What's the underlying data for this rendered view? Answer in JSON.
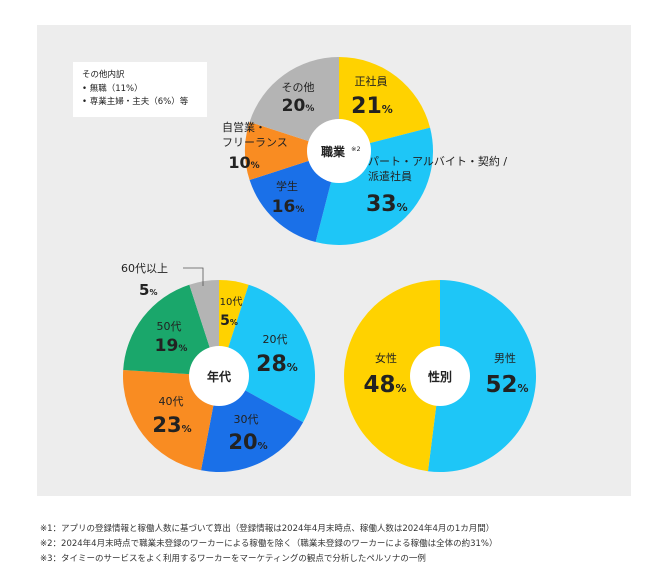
{
  "colors": {
    "yellow": "#ffd200",
    "lightblue": "#1ec6f7",
    "blue": "#1a70e8",
    "orange": "#f98c22",
    "gray": "#b4b4b4",
    "green": "#1aa76b",
    "background": "#ededed"
  },
  "note_box": {
    "title": "その他内訳",
    "items": [
      "• 無職（11%）",
      "• 専業主婦・主夫（6%）等"
    ]
  },
  "chart_data": [
    {
      "type": "pie",
      "variant": "donut",
      "center_label": "職業",
      "center_sup": "※2",
      "slices": [
        {
          "label": "正社員",
          "value": 21,
          "display": "21",
          "color": "yellow"
        },
        {
          "label": "パート・アルバイト・契約 / 派遣社員",
          "label_lines": [
            "パート・アルバイト・契約 /",
            "派遣社員"
          ],
          "value": 33,
          "display": "33",
          "color": "lightblue"
        },
        {
          "label": "学生",
          "value": 16,
          "display": "16",
          "color": "blue"
        },
        {
          "label": "自営業・フリーランス",
          "label_lines": [
            "自営業・",
            "フリーランス"
          ],
          "value": 10,
          "display": "10",
          "color": "orange"
        },
        {
          "label": "その他",
          "value": 20,
          "display": "20",
          "color": "gray"
        }
      ]
    },
    {
      "type": "pie",
      "variant": "donut",
      "center_label": "年代",
      "slices": [
        {
          "label": "10代",
          "value": 5,
          "display": "5",
          "color": "yellow"
        },
        {
          "label": "20代",
          "value": 28,
          "display": "28",
          "color": "lightblue"
        },
        {
          "label": "30代",
          "value": 20,
          "display": "20",
          "color": "blue"
        },
        {
          "label": "40代",
          "value": 23,
          "display": "23",
          "color": "orange"
        },
        {
          "label": "50代",
          "value": 19,
          "display": "19",
          "color": "green"
        },
        {
          "label": "60代以上",
          "value": 5,
          "display": "5",
          "color": "gray"
        }
      ]
    },
    {
      "type": "pie",
      "variant": "donut",
      "center_label": "性別",
      "slices": [
        {
          "label": "男性",
          "value": 52,
          "display": "52",
          "color": "lightblue"
        },
        {
          "label": "女性",
          "value": 48,
          "display": "48",
          "color": "yellow"
        }
      ]
    }
  ],
  "unit": "%",
  "footnotes": [
    "※1：アプリの登録情報と稼働人数に基づいて算出（登録情報は2024年4月末時点、稼働人数は2024年4月の1カ月間）",
    "※2：2024年4月末時点で職業未登録のワーカーによる稼働を除く（職業未登録のワーカーによる稼働は全体の約31%）",
    "※3：タイミーのサービスをよく利用するワーカーをマーケティングの観点で分析したペルソナの一例"
  ]
}
